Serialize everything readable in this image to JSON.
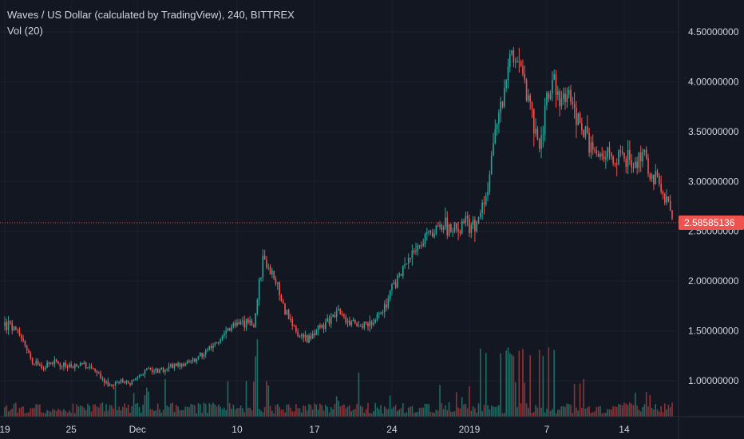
{
  "legend": {
    "title": "Waves / US Dollar (calculated by TradingView), 240, BITTREX",
    "volume_label": "Vol (20)"
  },
  "colors": {
    "background": "#131722",
    "grid": "#1c2030",
    "up": "#26a69a",
    "down": "#ef5350",
    "up_volume": "#1f6b64",
    "down_volume": "#8a3437",
    "last_price": "#ef5350",
    "text": "#d1d4dc"
  },
  "last_price_label": "2.58585136",
  "chart_data": {
    "type": "candlestick",
    "title": "Waves / US Dollar (calculated by TradingView), 240, BITTREX",
    "y_axis_labels": [
      "1.00000000",
      "1.50000000",
      "2.00000000",
      "2.50000000",
      "3.00000000",
      "3.50000000",
      "4.00000000",
      "4.50000000"
    ],
    "y_ticks": [
      1.0,
      1.5,
      2.0,
      2.5,
      3.0,
      3.5,
      4.0,
      4.5
    ],
    "ylim": [
      0.64,
      4.82
    ],
    "x_axis_labels": [
      "19",
      "25",
      "Dec",
      "10",
      "17",
      "24",
      "2019",
      "7",
      "14"
    ],
    "x_ticks": [
      0,
      36,
      72,
      126,
      168,
      210,
      252,
      294,
      336
    ],
    "x_range": [
      0,
      362
    ],
    "last_price": 2.58585136,
    "grid": true,
    "price_path": [
      [
        0,
        1.55
      ],
      [
        4,
        1.55
      ],
      [
        10,
        1.38
      ],
      [
        16,
        1.18
      ],
      [
        20,
        1.13
      ],
      [
        26,
        1.18
      ],
      [
        32,
        1.16
      ],
      [
        38,
        1.13
      ],
      [
        42,
        1.17
      ],
      [
        48,
        1.12
      ],
      [
        52,
        1.05
      ],
      [
        56,
        0.97
      ],
      [
        62,
        1.0
      ],
      [
        68,
        0.98
      ],
      [
        72,
        1.05
      ],
      [
        78,
        1.12
      ],
      [
        84,
        1.1
      ],
      [
        90,
        1.14
      ],
      [
        96,
        1.17
      ],
      [
        102,
        1.22
      ],
      [
        110,
        1.3
      ],
      [
        118,
        1.45
      ],
      [
        124,
        1.55
      ],
      [
        130,
        1.58
      ],
      [
        135,
        1.55
      ],
      [
        140,
        2.25
      ],
      [
        144,
        2.1
      ],
      [
        148,
        1.95
      ],
      [
        152,
        1.7
      ],
      [
        156,
        1.55
      ],
      [
        160,
        1.45
      ],
      [
        164,
        1.4
      ],
      [
        168,
        1.48
      ],
      [
        172,
        1.55
      ],
      [
        176,
        1.6
      ],
      [
        180,
        1.68
      ],
      [
        184,
        1.62
      ],
      [
        190,
        1.57
      ],
      [
        196,
        1.56
      ],
      [
        200,
        1.58
      ],
      [
        206,
        1.75
      ],
      [
        212,
        2.0
      ],
      [
        218,
        2.15
      ],
      [
        224,
        2.35
      ],
      [
        230,
        2.48
      ],
      [
        236,
        2.55
      ],
      [
        242,
        2.52
      ],
      [
        248,
        2.55
      ],
      [
        254,
        2.58
      ],
      [
        258,
        2.65
      ],
      [
        262,
        2.95
      ],
      [
        266,
        3.5
      ],
      [
        270,
        3.75
      ],
      [
        274,
        4.3
      ],
      [
        278,
        4.15
      ],
      [
        282,
        4.0
      ],
      [
        286,
        3.6
      ],
      [
        290,
        3.35
      ],
      [
        294,
        3.85
      ],
      [
        298,
        3.95
      ],
      [
        302,
        3.85
      ],
      [
        306,
        3.9
      ],
      [
        310,
        3.7
      ],
      [
        314,
        3.5
      ],
      [
        318,
        3.3
      ],
      [
        322,
        3.25
      ],
      [
        326,
        3.3
      ],
      [
        330,
        3.18
      ],
      [
        334,
        3.28
      ],
      [
        338,
        3.2
      ],
      [
        342,
        3.15
      ],
      [
        346,
        3.3
      ],
      [
        350,
        3.12
      ],
      [
        354,
        3.0
      ],
      [
        358,
        2.85
      ],
      [
        362,
        2.65
      ]
    ]
  }
}
